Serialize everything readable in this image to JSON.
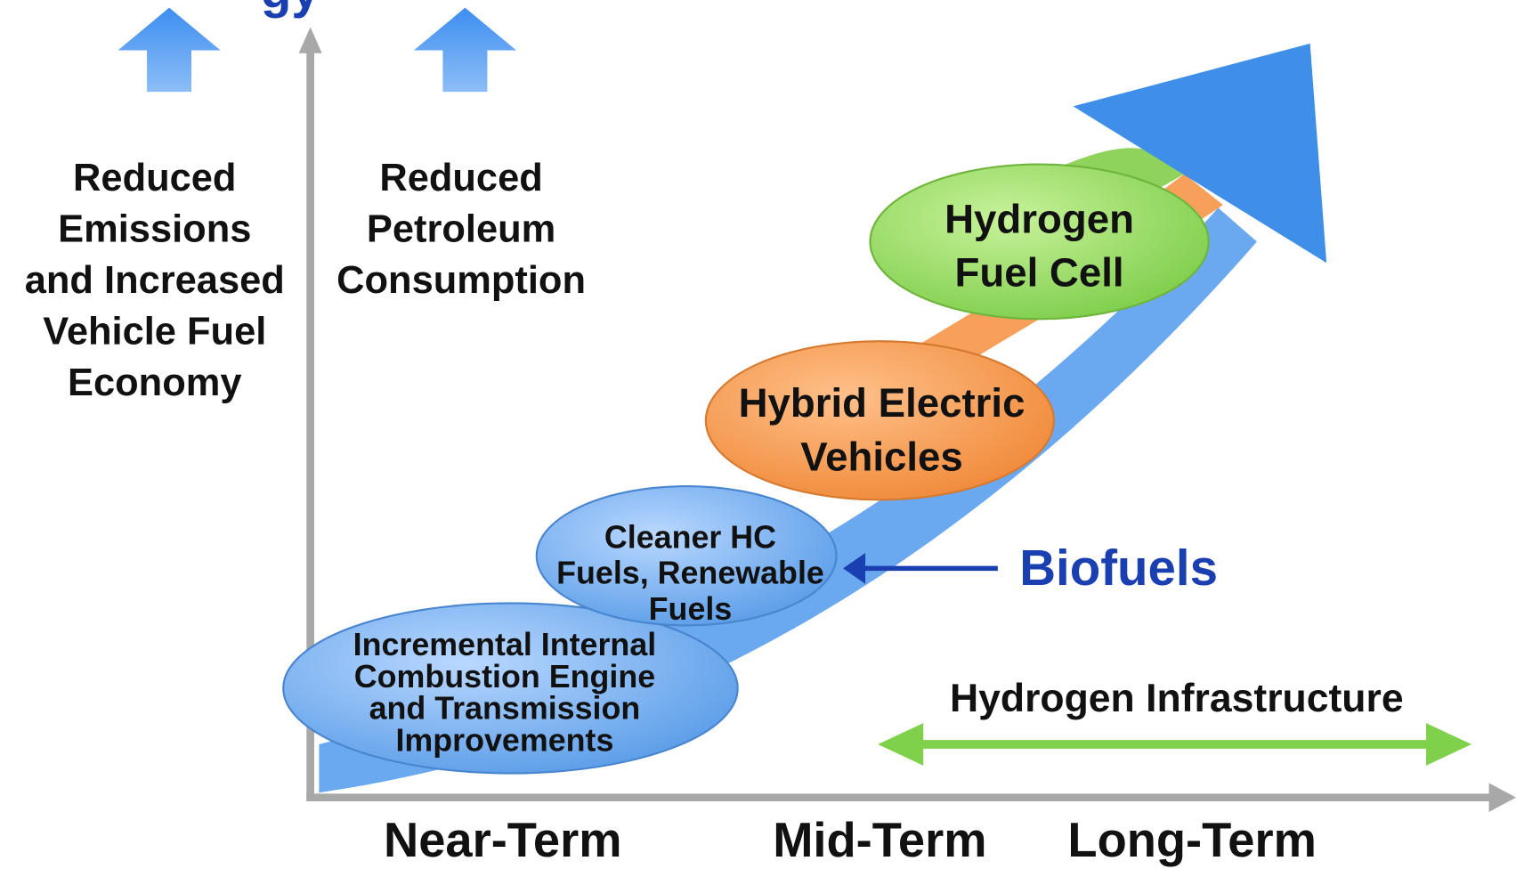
{
  "title_fragment": "gy",
  "left_goal": {
    "lines": [
      "Reduced",
      "Emissions",
      "and Increased",
      "Vehicle Fuel",
      "Economy"
    ]
  },
  "right_goal": {
    "lines": [
      "Reduced",
      "Petroleum",
      "Consumption"
    ]
  },
  "stages": [
    {
      "lines": [
        "Incremental Internal",
        "Combustion Engine",
        "and Transmission",
        "Improvements"
      ]
    },
    {
      "lines": [
        "Cleaner HC",
        "Fuels, Renewable",
        "Fuels"
      ]
    },
    {
      "lines": [
        "Hybrid Electric",
        "Vehicles"
      ]
    },
    {
      "lines": [
        "Hydrogen",
        "Fuel Cell"
      ]
    }
  ],
  "callout": "Biofuels",
  "infrastructure": "Hydrogen Infrastructure",
  "timeline": [
    "Near-Term",
    "Mid-Term",
    "Long-Term"
  ]
}
